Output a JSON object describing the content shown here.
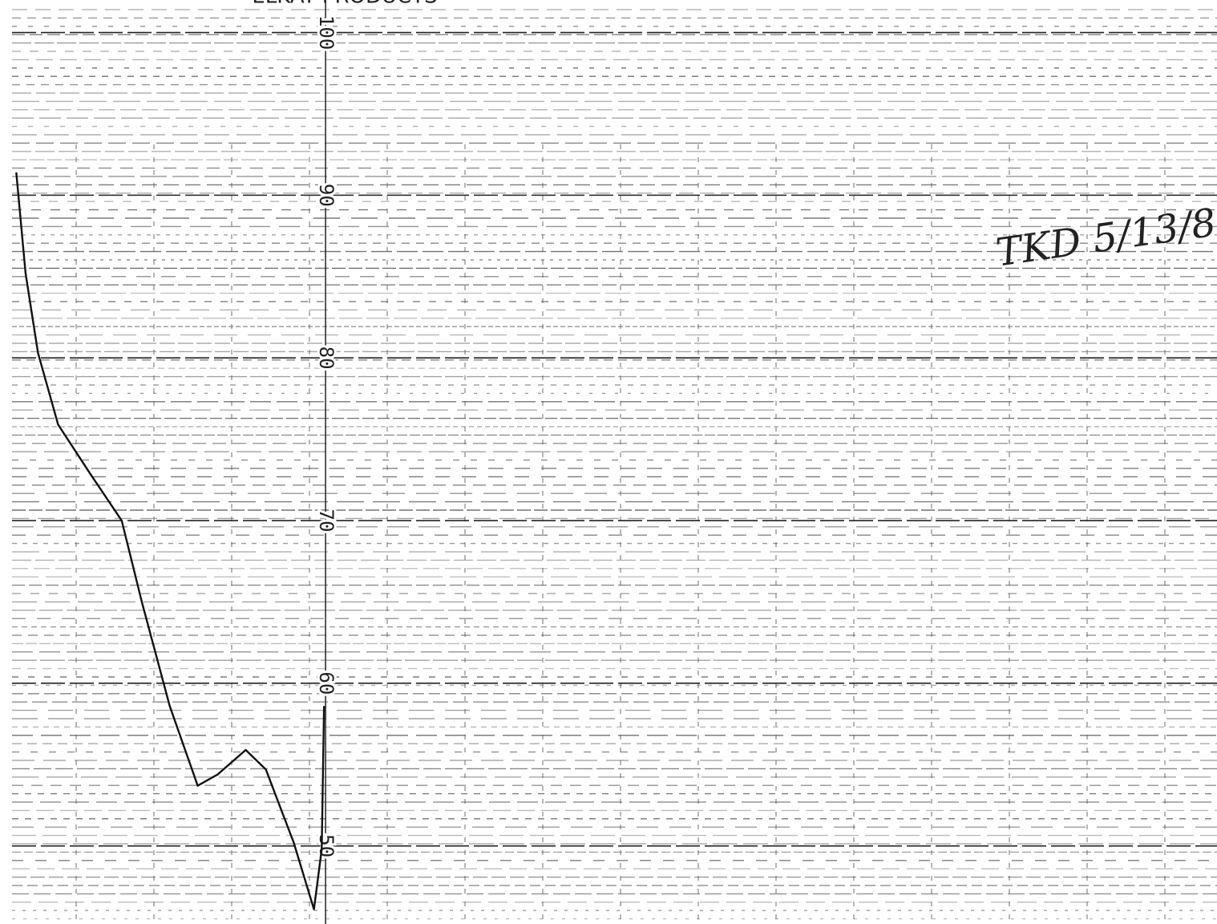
{
  "chart_data": {
    "type": "line",
    "title": "ELKAY PRODUCTS",
    "annotation": "TKD 5/13/8",
    "ylim": [
      45.2,
      102
    ],
    "yticks": [
      100,
      90,
      80,
      70,
      60,
      50
    ],
    "xlim": [
      -4.2,
      11.5
    ],
    "x": [
      -3.99,
      -3.87,
      -3.71,
      -3.45,
      -3.04,
      -2.63,
      -2.37,
      -2.01,
      -1.65,
      -1.39,
      -1.03,
      -0.77,
      -0.41,
      -0.15,
      -0.05,
      -0.02
    ],
    "series": [
      {
        "color": "#111111",
        "values": [
          91.4,
          85.2,
          80.3,
          75.9,
          72.9,
          70.0,
          65.0,
          58.6,
          53.7,
          54.4,
          55.9,
          54.7,
          50.2,
          46.1,
          49.8,
          58.6
        ]
      }
    ],
    "grid": true
  }
}
